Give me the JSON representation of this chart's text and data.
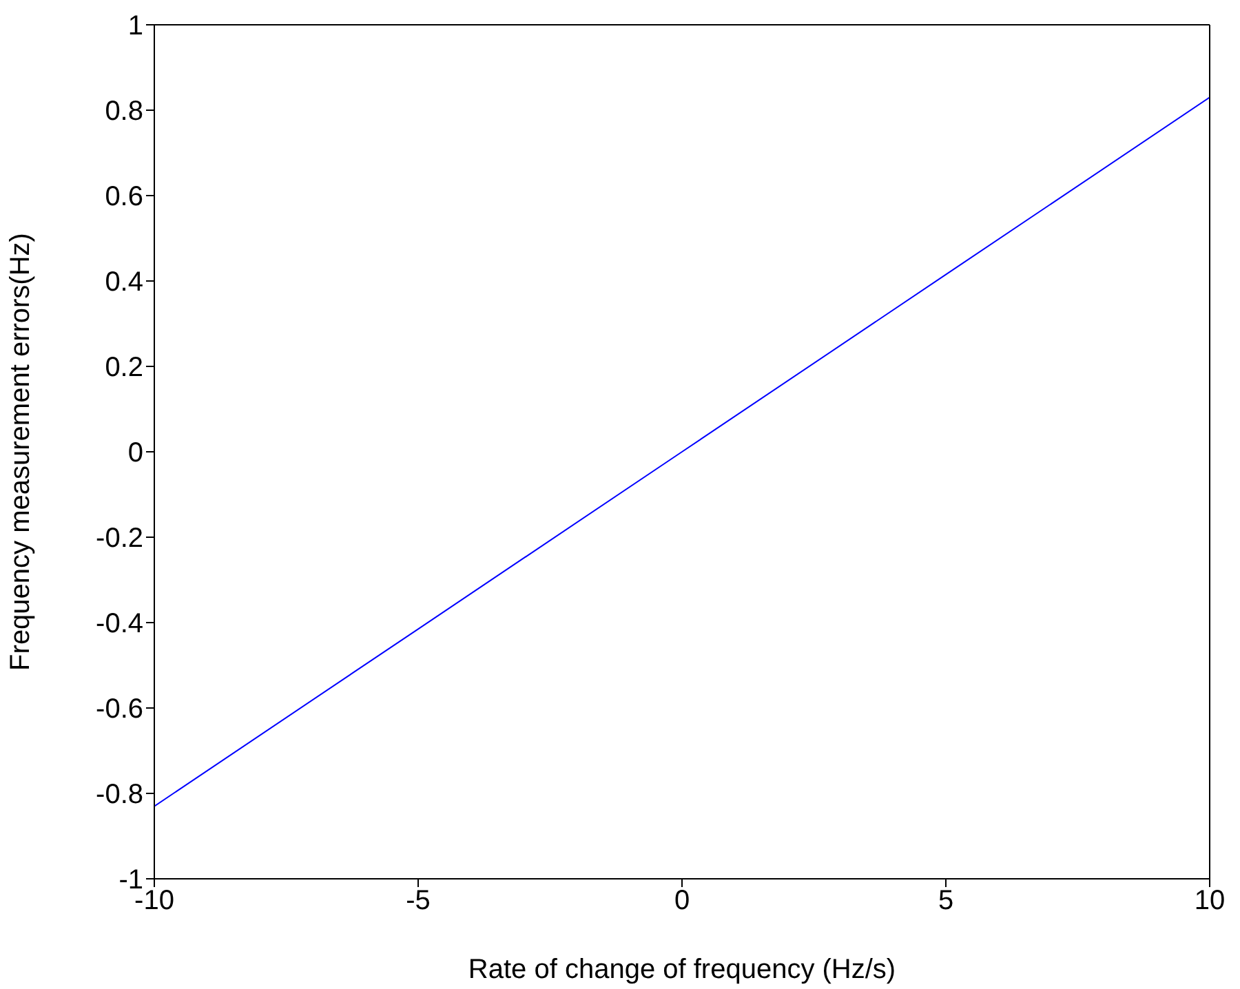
{
  "chart_data": {
    "type": "line",
    "xlabel": "Rate of change of frequency (Hz/s)",
    "ylabel": "Frequency measurement errors(Hz)",
    "x": [
      -10,
      -5,
      0,
      5,
      10
    ],
    "series": [
      {
        "color": "#0000ff",
        "values": [
          -0.83,
          -0.415,
          0,
          0.415,
          0.83
        ]
      }
    ],
    "xlim": [
      -10,
      10
    ],
    "xticks": [
      -10,
      -5,
      0,
      5,
      10
    ],
    "ylim": [
      -1,
      1
    ],
    "yticks": [
      -1,
      -0.8,
      -0.6,
      -0.4,
      -0.2,
      0,
      0.2,
      0.4,
      0.6,
      0.8,
      1
    ],
    "grid": false,
    "marker": "none",
    "line_style": "solid"
  }
}
